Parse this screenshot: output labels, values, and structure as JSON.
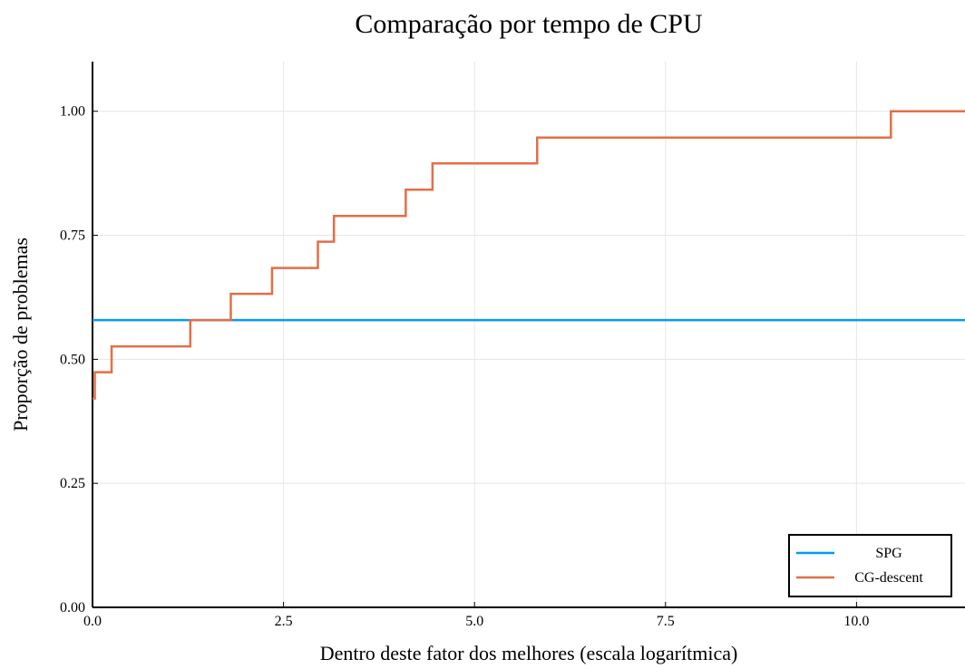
{
  "chart_data": {
    "type": "line",
    "step": "post",
    "title": "Comparação por tempo de CPU",
    "xlabel": "Dentro deste fator dos melhores (escala logarítmica)",
    "ylabel": "Proporção de problemas",
    "xlim": [
      0,
      11.42
    ],
    "ylim": [
      0,
      1.1
    ],
    "xticks": [
      {
        "value": 0,
        "label": "0.0"
      },
      2.5,
      {
        "value": 5,
        "label": "5.0"
      },
      7.5,
      {
        "value": 10,
        "label": "10.0"
      }
    ],
    "yticks": [
      {
        "value": 0,
        "label": "0.00"
      },
      0.25,
      {
        "value": 0.5,
        "label": "0.50"
      },
      0.75,
      {
        "value": 1,
        "label": "1.00"
      }
    ],
    "grid": true,
    "legend": "bottom-right",
    "series": [
      {
        "name": "SPG",
        "color": "#009af9",
        "x": [
          0,
          11.42
        ],
        "values": [
          0.579,
          0.579
        ]
      },
      {
        "name": "CG-descent",
        "color": "#e26f46",
        "x": [
          0,
          0.03,
          0.25,
          1.28,
          1.81,
          2.35,
          2.95,
          3.16,
          4.1,
          4.45,
          5.82,
          10.45,
          11.42
        ],
        "values": [
          0.421,
          0.474,
          0.526,
          0.579,
          0.632,
          0.684,
          0.737,
          0.789,
          0.842,
          0.895,
          0.947,
          1.0,
          1.0
        ]
      }
    ]
  }
}
